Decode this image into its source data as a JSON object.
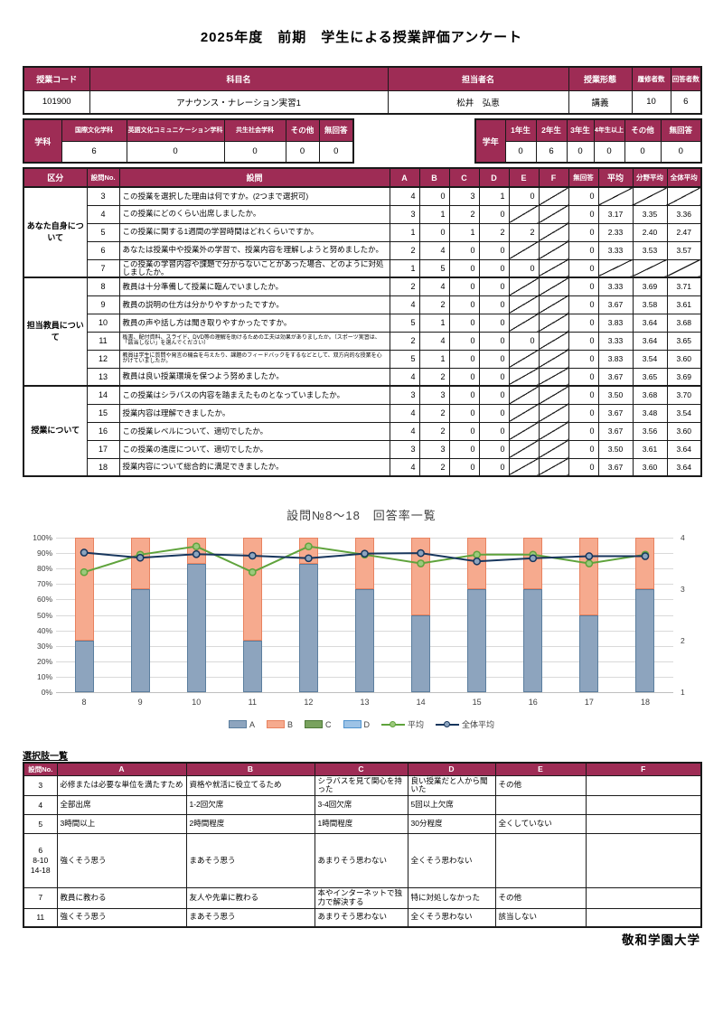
{
  "title": "2025年度　前期　学生による授業評価アンケート",
  "footer": "敬和学園大学",
  "colors": {
    "maroon": "#9e2c55",
    "grid": "#d9d9d9",
    "bar_a": "#8da4be",
    "bar_a_border": "#5b7e9e",
    "bar_b": "#f6aa8e",
    "bar_b_border": "#e8825f",
    "bar_c": "#79a25e",
    "bar_c_border": "#4e7a38",
    "bar_d": "#9dc3e6",
    "bar_d_border": "#4f93ce",
    "line_avg": "#5fa33c",
    "line_overall": "#17365d"
  },
  "course_table": {
    "headers": [
      "授業コード",
      "科目名",
      "担当者名",
      "授業形態",
      "履修者数",
      "回答者数"
    ],
    "row": [
      "101900",
      "アナウンス・ナレーション実習1",
      "松井　弘恵",
      "講義",
      "10",
      "6"
    ]
  },
  "department_table": {
    "label": "学科",
    "headers": [
      "国際文化学科",
      "英語文化コミュニケーション学科",
      "共生社会学科",
      "その他",
      "無回答"
    ],
    "values": [
      "6",
      "0",
      "0",
      "0",
      "0"
    ]
  },
  "grade_table": {
    "label": "学年",
    "headers": [
      "1年生",
      "2年生",
      "3年生",
      "4年生以上",
      "その他",
      "無回答"
    ],
    "values": [
      "0",
      "6",
      "0",
      "0",
      "0",
      "0"
    ]
  },
  "main_table": {
    "headers": [
      "区分",
      "設問No.",
      "設問",
      "A",
      "B",
      "C",
      "D",
      "E",
      "F",
      "無回答",
      "平均",
      "分野平均",
      "全体平均"
    ],
    "diag_marker": "/",
    "sections": [
      {
        "label": "あなた自身について",
        "rows": [
          {
            "no": "3",
            "question": "この授業を選択した理由は何ですか。(2つまで選択可)",
            "cells": [
              "4",
              "0",
              "3",
              "1",
              "0",
              "/",
              "0",
              "/",
              "/",
              "/"
            ]
          },
          {
            "no": "4",
            "question": "この授業にどのくらい出席しましたか。",
            "cells": [
              "3",
              "1",
              "2",
              "0",
              "/",
              "/",
              "0",
              "3.17",
              "3.35",
              "3.36"
            ]
          },
          {
            "no": "5",
            "question": "この授業に関する1週間の学習時間はどれくらいですか。",
            "cells": [
              "1",
              "0",
              "1",
              "2",
              "2",
              "/",
              "0",
              "2.33",
              "2.40",
              "2.47"
            ]
          },
          {
            "no": "6",
            "question": "あなたは授業中や授業外の学習で、授業内容を理解しようと努めましたか。",
            "cells": [
              "2",
              "4",
              "0",
              "0",
              "/",
              "/",
              "0",
              "3.33",
              "3.53",
              "3.57"
            ]
          },
          {
            "no": "7",
            "question": "この授業の学習内容や課題で分からないことがあった場合、どのように対処しましたか。",
            "cells": [
              "1",
              "5",
              "0",
              "0",
              "0",
              "/",
              "0",
              "/",
              "/",
              "/"
            ]
          }
        ]
      },
      {
        "label": "担当教員について",
        "rows": [
          {
            "no": "8",
            "question": "教員は十分準備して授業に臨んでいましたか。",
            "cells": [
              "2",
              "4",
              "0",
              "0",
              "/",
              "/",
              "0",
              "3.33",
              "3.69",
              "3.71"
            ]
          },
          {
            "no": "9",
            "question": "教員の説明の仕方は分かりやすかったですか。",
            "cells": [
              "4",
              "2",
              "0",
              "0",
              "/",
              "/",
              "0",
              "3.67",
              "3.58",
              "3.61"
            ]
          },
          {
            "no": "10",
            "question": "教員の声や話し方は聞き取りやすかったですか。",
            "cells": [
              "5",
              "1",
              "0",
              "0",
              "/",
              "/",
              "0",
              "3.83",
              "3.64",
              "3.68"
            ]
          },
          {
            "no": "11",
            "question": "板書、配付資料、スライド、DVD等の理解を助けるための工夫は効果がありましたか。（スポーツ実習は、「該当しない」を選んでください）",
            "cells": [
              "2",
              "4",
              "0",
              "0",
              "0",
              "/",
              "0",
              "3.33",
              "3.64",
              "3.65"
            ]
          },
          {
            "no": "12",
            "question": "教員は学生に質問や発言の機会を与えたり、課題のフィードバックをするなどとして、双方向的な授業を心がけていましたか。",
            "cells": [
              "5",
              "1",
              "0",
              "0",
              "/",
              "/",
              "0",
              "3.83",
              "3.54",
              "3.60"
            ]
          },
          {
            "no": "13",
            "question": "教員は良い授業環境を保つよう努めましたか。",
            "cells": [
              "4",
              "2",
              "0",
              "0",
              "/",
              "/",
              "0",
              "3.67",
              "3.65",
              "3.69"
            ]
          }
        ]
      },
      {
        "label": "授業について",
        "rows": [
          {
            "no": "14",
            "question": "この授業はシラバスの内容を踏まえたものとなっていましたか。",
            "cells": [
              "3",
              "3",
              "0",
              "0",
              "/",
              "/",
              "0",
              "3.50",
              "3.68",
              "3.70"
            ]
          },
          {
            "no": "15",
            "question": "授業内容は理解できましたか。",
            "cells": [
              "4",
              "2",
              "0",
              "0",
              "/",
              "/",
              "0",
              "3.67",
              "3.48",
              "3.54"
            ]
          },
          {
            "no": "16",
            "question": "この授業レベルについて、適切でしたか。",
            "cells": [
              "4",
              "2",
              "0",
              "0",
              "/",
              "/",
              "0",
              "3.67",
              "3.56",
              "3.60"
            ]
          },
          {
            "no": "17",
            "question": "この授業の進度について、適切でしたか。",
            "cells": [
              "3",
              "3",
              "0",
              "0",
              "/",
              "/",
              "0",
              "3.50",
              "3.61",
              "3.64"
            ]
          },
          {
            "no": "18",
            "question": "授業内容について総合的に満足できましたか。",
            "cells": [
              "4",
              "2",
              "0",
              "0",
              "/",
              "/",
              "0",
              "3.67",
              "3.60",
              "3.64"
            ]
          }
        ]
      }
    ]
  },
  "chart_data": {
    "type": "stacked-bar-line",
    "title": "設問№8～18　回答率一覧",
    "categories": [
      "8",
      "9",
      "10",
      "11",
      "12",
      "13",
      "14",
      "15",
      "16",
      "17",
      "18"
    ],
    "bar_series": [
      {
        "name": "A",
        "values_pct": [
          33.3,
          66.7,
          83.3,
          33.3,
          83.3,
          66.7,
          50,
          66.7,
          66.7,
          50,
          66.7
        ],
        "color": "#8da4be",
        "border": "#5b7e9e"
      },
      {
        "name": "B",
        "values_pct": [
          66.7,
          33.3,
          16.7,
          66.7,
          16.7,
          33.3,
          50,
          33.3,
          33.3,
          50,
          33.3
        ],
        "color": "#f6aa8e",
        "border": "#e8825f"
      },
      {
        "name": "C",
        "values_pct": [
          0,
          0,
          0,
          0,
          0,
          0,
          0,
          0,
          0,
          0,
          0
        ],
        "color": "#79a25e",
        "border": "#4e7a38"
      },
      {
        "name": "D",
        "values_pct": [
          0,
          0,
          0,
          0,
          0,
          0,
          0,
          0,
          0,
          0,
          0
        ],
        "color": "#9dc3e6",
        "border": "#4f93ce"
      }
    ],
    "line_series": [
      {
        "name": "平均",
        "values": [
          3.33,
          3.67,
          3.83,
          3.33,
          3.83,
          3.67,
          3.5,
          3.67,
          3.67,
          3.5,
          3.67
        ],
        "color": "#5fa33c",
        "marker_fill": "#9cc97c"
      },
      {
        "name": "全体平均",
        "values": [
          3.71,
          3.61,
          3.68,
          3.65,
          3.6,
          3.69,
          3.7,
          3.54,
          3.6,
          3.64,
          3.64
        ],
        "color": "#17365d",
        "marker_fill": "#8da4be"
      }
    ],
    "left_axis": {
      "min": 0,
      "max": 100,
      "step": 10,
      "format": "percent",
      "ticks": [
        "0%",
        "10%",
        "20%",
        "30%",
        "40%",
        "50%",
        "60%",
        "70%",
        "80%",
        "90%",
        "100%"
      ]
    },
    "right_axis": {
      "min": 1,
      "max": 4,
      "ticks": [
        "1",
        "2",
        "3",
        "4"
      ]
    },
    "grid": true,
    "legend_position": "bottom"
  },
  "choices": {
    "label": "選択肢一覧",
    "headers": [
      "設問No.",
      "A",
      "B",
      "C",
      "D",
      "E",
      "F"
    ],
    "rows": [
      {
        "no_lines": [
          "3"
        ],
        "choices": [
          "必修または必要な単位を満たすため",
          "資格や就活に役立てるため",
          "シラバスを見て関心を持った",
          "良い授業だと人から聞いた",
          "その他",
          ""
        ]
      },
      {
        "no_lines": [
          "4"
        ],
        "choices": [
          "全部出席",
          "1-2回欠席",
          "3-4回欠席",
          "5回以上欠席",
          "",
          ""
        ]
      },
      {
        "no_lines": [
          "5"
        ],
        "choices": [
          "3時間以上",
          "2時間程度",
          "1時間程度",
          "30分程度",
          "全くしていない",
          ""
        ]
      },
      {
        "no_lines": [
          "6",
          "8-10",
          "14-18"
        ],
        "tall": true,
        "choices": [
          "強くそう思う",
          "まあそう思う",
          "あまりそう思わない",
          "全くそう思わない",
          "",
          ""
        ]
      },
      {
        "no_lines": [
          "7"
        ],
        "choices": [
          "教員に教わる",
          "友人や先輩に教わる",
          "本やインターネットで独力で解決する",
          "特に対処しなかった",
          "その他",
          ""
        ]
      },
      {
        "no_lines": [
          "11"
        ],
        "choices": [
          "強くそう思う",
          "まあそう思う",
          "あまりそう思わない",
          "全くそう思わない",
          "該当しない",
          ""
        ]
      }
    ]
  }
}
